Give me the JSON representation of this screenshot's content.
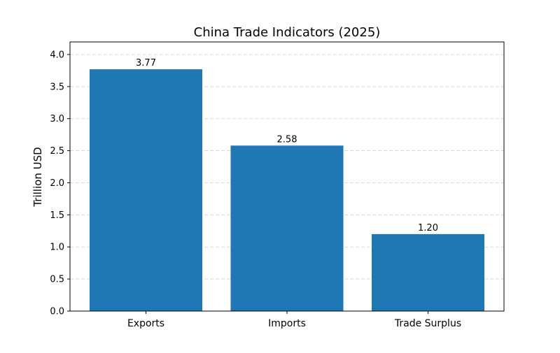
{
  "chart_data": {
    "type": "bar",
    "title": "China Trade Indicators (2025)",
    "xlabel": "",
    "ylabel": "Trillion USD",
    "categories": [
      "Exports",
      "Imports",
      "Trade Surplus"
    ],
    "values": [
      3.77,
      2.58,
      1.2
    ],
    "data_labels": [
      "3.77",
      "2.58",
      "1.20"
    ],
    "ylim": [
      0,
      4.2
    ],
    "yticks": [
      0.0,
      0.5,
      1.0,
      1.5,
      2.0,
      2.5,
      3.0,
      3.5,
      4.0
    ],
    "ytick_labels": [
      "0.0",
      "0.5",
      "1.0",
      "1.5",
      "2.0",
      "2.5",
      "3.0",
      "3.5",
      "4.0"
    ],
    "grid": "y-axis dashed",
    "bar_color": "#1f77b4"
  }
}
